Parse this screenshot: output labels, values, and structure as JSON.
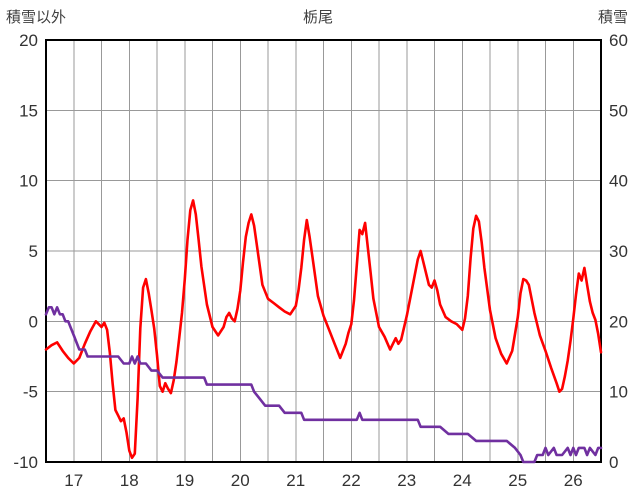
{
  "chart_data": {
    "type": "line",
    "title": "栃尾",
    "left_axis_label": "積雪以外",
    "right_axis_label": "積雪",
    "x_range": [
      16.5,
      26.5
    ],
    "left_ylim": [
      -10,
      20
    ],
    "right_ylim": [
      0,
      60
    ],
    "left_ticks": [
      20,
      15,
      10,
      5,
      0,
      -5,
      -10
    ],
    "right_ticks": [
      60,
      50,
      40,
      30,
      20,
      10,
      0
    ],
    "x_ticks": [
      17,
      18,
      19,
      20,
      21,
      22,
      23,
      24,
      25,
      26
    ],
    "x_grid_step": 0.5,
    "grid": true,
    "colors": {
      "grid": "#999999",
      "border": "#000000",
      "tick_text": "#333333",
      "background": "#FFFFFF"
    },
    "series": [
      {
        "name": "積雪以外",
        "axis": "left",
        "color": "#FF0000",
        "width": 2.6,
        "points": [
          [
            16.5,
            -2.0
          ],
          [
            16.6,
            -1.7
          ],
          [
            16.7,
            -1.5
          ],
          [
            16.8,
            -2.1
          ],
          [
            16.9,
            -2.6
          ],
          [
            17.0,
            -3.0
          ],
          [
            17.1,
            -2.6
          ],
          [
            17.2,
            -1.6
          ],
          [
            17.3,
            -0.7
          ],
          [
            17.4,
            0.0
          ],
          [
            17.45,
            -0.2
          ],
          [
            17.5,
            -0.4
          ],
          [
            17.55,
            -0.1
          ],
          [
            17.6,
            -0.6
          ],
          [
            17.65,
            -2.2
          ],
          [
            17.7,
            -4.4
          ],
          [
            17.75,
            -6.3
          ],
          [
            17.8,
            -6.7
          ],
          [
            17.85,
            -7.1
          ],
          [
            17.9,
            -6.9
          ],
          [
            17.95,
            -7.9
          ],
          [
            18.0,
            -9.2
          ],
          [
            18.05,
            -9.7
          ],
          [
            18.1,
            -9.4
          ],
          [
            18.15,
            -5.5
          ],
          [
            18.2,
            -0.5
          ],
          [
            18.25,
            2.4
          ],
          [
            18.3,
            3.0
          ],
          [
            18.35,
            2.0
          ],
          [
            18.4,
            0.8
          ],
          [
            18.45,
            -0.5
          ],
          [
            18.5,
            -2.4
          ],
          [
            18.55,
            -4.6
          ],
          [
            18.6,
            -5.0
          ],
          [
            18.65,
            -4.4
          ],
          [
            18.7,
            -4.8
          ],
          [
            18.75,
            -5.1
          ],
          [
            18.8,
            -4.2
          ],
          [
            18.85,
            -2.9
          ],
          [
            18.9,
            -1.2
          ],
          [
            18.95,
            0.6
          ],
          [
            19.0,
            3.0
          ],
          [
            19.05,
            5.8
          ],
          [
            19.1,
            7.9
          ],
          [
            19.15,
            8.6
          ],
          [
            19.2,
            7.6
          ],
          [
            19.25,
            5.8
          ],
          [
            19.3,
            3.9
          ],
          [
            19.4,
            1.2
          ],
          [
            19.5,
            -0.4
          ],
          [
            19.6,
            -1.0
          ],
          [
            19.7,
            -0.4
          ],
          [
            19.75,
            0.3
          ],
          [
            19.8,
            0.6
          ],
          [
            19.85,
            0.2
          ],
          [
            19.9,
            0.0
          ],
          [
            19.95,
            0.9
          ],
          [
            20.0,
            2.2
          ],
          [
            20.05,
            4.2
          ],
          [
            20.1,
            6.0
          ],
          [
            20.15,
            7.0
          ],
          [
            20.2,
            7.6
          ],
          [
            20.25,
            6.8
          ],
          [
            20.3,
            5.4
          ],
          [
            20.4,
            2.6
          ],
          [
            20.5,
            1.6
          ],
          [
            20.6,
            1.3
          ],
          [
            20.7,
            1.0
          ],
          [
            20.8,
            0.7
          ],
          [
            20.9,
            0.5
          ],
          [
            21.0,
            1.1
          ],
          [
            21.05,
            2.2
          ],
          [
            21.1,
            3.8
          ],
          [
            21.15,
            5.8
          ],
          [
            21.2,
            7.2
          ],
          [
            21.25,
            6.0
          ],
          [
            21.3,
            4.6
          ],
          [
            21.4,
            1.8
          ],
          [
            21.5,
            0.4
          ],
          [
            21.6,
            -0.6
          ],
          [
            21.7,
            -1.6
          ],
          [
            21.8,
            -2.6
          ],
          [
            21.9,
            -1.6
          ],
          [
            21.95,
            -0.8
          ],
          [
            22.0,
            -0.2
          ],
          [
            22.05,
            1.5
          ],
          [
            22.1,
            4.0
          ],
          [
            22.15,
            6.5
          ],
          [
            22.2,
            6.2
          ],
          [
            22.25,
            7.0
          ],
          [
            22.3,
            5.2
          ],
          [
            22.35,
            3.4
          ],
          [
            22.4,
            1.6
          ],
          [
            22.5,
            -0.4
          ],
          [
            22.6,
            -1.1
          ],
          [
            22.7,
            -2.0
          ],
          [
            22.8,
            -1.2
          ],
          [
            22.85,
            -1.6
          ],
          [
            22.9,
            -1.3
          ],
          [
            23.0,
            0.4
          ],
          [
            23.1,
            2.4
          ],
          [
            23.2,
            4.4
          ],
          [
            23.25,
            5.0
          ],
          [
            23.3,
            4.2
          ],
          [
            23.4,
            2.6
          ],
          [
            23.45,
            2.4
          ],
          [
            23.5,
            2.9
          ],
          [
            23.55,
            2.2
          ],
          [
            23.6,
            1.2
          ],
          [
            23.7,
            0.3
          ],
          [
            23.8,
            0.0
          ],
          [
            23.9,
            -0.2
          ],
          [
            24.0,
            -0.6
          ],
          [
            24.05,
            0.2
          ],
          [
            24.1,
            1.8
          ],
          [
            24.15,
            4.5
          ],
          [
            24.2,
            6.6
          ],
          [
            24.25,
            7.5
          ],
          [
            24.3,
            7.1
          ],
          [
            24.35,
            5.6
          ],
          [
            24.4,
            3.8
          ],
          [
            24.5,
            0.8
          ],
          [
            24.6,
            -1.2
          ],
          [
            24.7,
            -2.3
          ],
          [
            24.8,
            -3.0
          ],
          [
            24.9,
            -2.1
          ],
          [
            25.0,
            0.3
          ],
          [
            25.05,
            2.0
          ],
          [
            25.1,
            3.0
          ],
          [
            25.15,
            2.9
          ],
          [
            25.2,
            2.6
          ],
          [
            25.3,
            0.6
          ],
          [
            25.4,
            -1.0
          ],
          [
            25.5,
            -2.1
          ],
          [
            25.6,
            -3.3
          ],
          [
            25.7,
            -4.4
          ],
          [
            25.75,
            -5.0
          ],
          [
            25.8,
            -4.8
          ],
          [
            25.85,
            -3.9
          ],
          [
            25.9,
            -2.8
          ],
          [
            25.95,
            -1.4
          ],
          [
            26.0,
            0.2
          ],
          [
            26.05,
            1.9
          ],
          [
            26.1,
            3.4
          ],
          [
            26.15,
            2.9
          ],
          [
            26.2,
            3.8
          ],
          [
            26.25,
            2.6
          ],
          [
            26.3,
            1.4
          ],
          [
            26.35,
            0.6
          ],
          [
            26.4,
            0.1
          ],
          [
            26.45,
            -0.9
          ],
          [
            26.5,
            -2.2
          ]
        ]
      },
      {
        "name": "積雪",
        "axis": "right",
        "color": "#7030A0",
        "width": 2.6,
        "points": [
          [
            16.5,
            21
          ],
          [
            16.55,
            22
          ],
          [
            16.6,
            22
          ],
          [
            16.65,
            21
          ],
          [
            16.7,
            22
          ],
          [
            16.75,
            21
          ],
          [
            16.8,
            21
          ],
          [
            16.85,
            20
          ],
          [
            16.9,
            20
          ],
          [
            16.95,
            19
          ],
          [
            17.0,
            18
          ],
          [
            17.05,
            17
          ],
          [
            17.1,
            16
          ],
          [
            17.2,
            16
          ],
          [
            17.25,
            15
          ],
          [
            17.4,
            15
          ],
          [
            17.6,
            15
          ],
          [
            17.8,
            15
          ],
          [
            17.9,
            14
          ],
          [
            18.0,
            14
          ],
          [
            18.05,
            15
          ],
          [
            18.1,
            14
          ],
          [
            18.15,
            15
          ],
          [
            18.2,
            14
          ],
          [
            18.3,
            14
          ],
          [
            18.4,
            13
          ],
          [
            18.5,
            13
          ],
          [
            18.6,
            12
          ],
          [
            18.8,
            12
          ],
          [
            19.0,
            12
          ],
          [
            19.2,
            12
          ],
          [
            19.35,
            12
          ],
          [
            19.4,
            11
          ],
          [
            19.6,
            11
          ],
          [
            19.8,
            11
          ],
          [
            20.0,
            11
          ],
          [
            20.2,
            11
          ],
          [
            20.25,
            10
          ],
          [
            20.35,
            9
          ],
          [
            20.45,
            8
          ],
          [
            20.6,
            8
          ],
          [
            20.7,
            8
          ],
          [
            20.8,
            7
          ],
          [
            21.0,
            7
          ],
          [
            21.1,
            7
          ],
          [
            21.15,
            6
          ],
          [
            21.3,
            6
          ],
          [
            21.5,
            6
          ],
          [
            21.7,
            6
          ],
          [
            21.9,
            6
          ],
          [
            22.0,
            6
          ],
          [
            22.1,
            6
          ],
          [
            22.15,
            7
          ],
          [
            22.2,
            6
          ],
          [
            22.4,
            6
          ],
          [
            22.6,
            6
          ],
          [
            22.8,
            6
          ],
          [
            23.0,
            6
          ],
          [
            23.2,
            6
          ],
          [
            23.25,
            5
          ],
          [
            23.4,
            5
          ],
          [
            23.6,
            5
          ],
          [
            23.75,
            4
          ],
          [
            23.9,
            4
          ],
          [
            24.1,
            4
          ],
          [
            24.25,
            3
          ],
          [
            24.4,
            3
          ],
          [
            24.6,
            3
          ],
          [
            24.8,
            3
          ],
          [
            24.95,
            2
          ],
          [
            25.05,
            1
          ],
          [
            25.1,
            0
          ],
          [
            25.2,
            0
          ],
          [
            25.3,
            0
          ],
          [
            25.35,
            1
          ],
          [
            25.45,
            1
          ],
          [
            25.5,
            2
          ],
          [
            25.55,
            1
          ],
          [
            25.65,
            2
          ],
          [
            25.7,
            1
          ],
          [
            25.8,
            1
          ],
          [
            25.9,
            2
          ],
          [
            25.95,
            1
          ],
          [
            26.0,
            2
          ],
          [
            26.05,
            1
          ],
          [
            26.1,
            2
          ],
          [
            26.2,
            2
          ],
          [
            26.25,
            1
          ],
          [
            26.3,
            2
          ],
          [
            26.4,
            1
          ],
          [
            26.45,
            2
          ],
          [
            26.5,
            2
          ]
        ]
      }
    ]
  }
}
